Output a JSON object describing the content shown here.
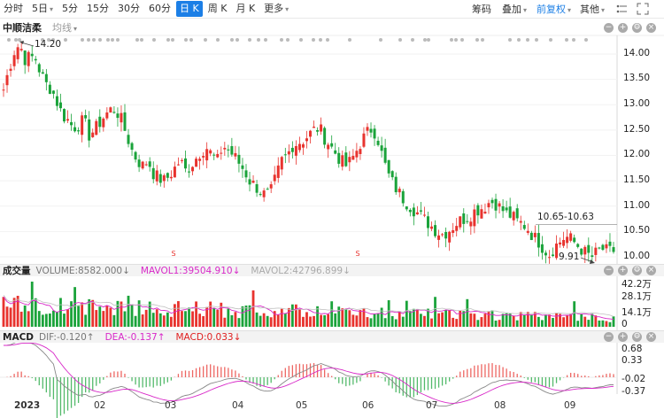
{
  "toolbar": {
    "periods": [
      "分时",
      "5日",
      "5分",
      "15分",
      "30分",
      "60分",
      "日 K",
      "周 K",
      "月 K",
      "更多"
    ],
    "active_period": "日 K",
    "chip": "筹码",
    "overlay": "叠加",
    "adjust": "前复权",
    "other": "其他"
  },
  "stock": {
    "name": "中顺洁柔",
    "ma_label": "均线"
  },
  "price_axis": [
    "14.00",
    "13.50",
    "13.00",
    "12.50",
    "12.00",
    "11.50",
    "11.00",
    "10.50",
    "10.00"
  ],
  "annotations": {
    "high": "14.20",
    "low": "9.91",
    "range": "10.65-10.63"
  },
  "volume_pane": {
    "title": "成交量",
    "volume": "VOLUME:8582.000↓",
    "mavol1": "MAVOL1:39504.910↓",
    "mavol2": "MAVOL2:42796.899↓",
    "axis": [
      "42.2万",
      "28.1万",
      "14.1万",
      "0"
    ]
  },
  "macd_pane": {
    "title": "MACD",
    "dif": "DIF:-0.120↑",
    "dea": "DEA:-0.137↑",
    "macd": "MACD:0.033↓",
    "axis": [
      "0.68",
      "0.33",
      "-0.02",
      "-0.37"
    ]
  },
  "time_axis": [
    "2023",
    "02",
    "03",
    "04",
    "05",
    "06",
    "07",
    "08",
    "09"
  ],
  "colors": {
    "up": "#e8332e",
    "down": "#1aa33a",
    "mavol1": "#d828c8",
    "dif": "#888888",
    "dea": "#d828c8",
    "accent": "#1c7fe6"
  },
  "chart_data": {
    "type": "candlestick",
    "ylim": [
      9.85,
      14.3
    ],
    "path": [
      13.3,
      13.7,
      14.05,
      14.2,
      13.9,
      13.95,
      13.9,
      13.6,
      13.4,
      13.3,
      13.05,
      12.8,
      12.7,
      12.55,
      12.6,
      12.7,
      12.4,
      12.5,
      12.65,
      12.8,
      12.9,
      12.9,
      12.7,
      12.4,
      12.1,
      11.9,
      11.8,
      11.9,
      11.65,
      11.55,
      11.5,
      11.6,
      11.75,
      11.9,
      11.7,
      11.8,
      11.95,
      12.1,
      12.15,
      12.0,
      11.9,
      12.2,
      12.1,
      12.0,
      11.85,
      11.7,
      11.5,
      11.4,
      11.3,
      11.2,
      11.3,
      11.6,
      11.9,
      12.0,
      12.2,
      12.25,
      12.3,
      12.4,
      12.5,
      12.55,
      12.35,
      12.2,
      12.05,
      11.9,
      11.8,
      11.9,
      12.1,
      12.3,
      12.45,
      12.55,
      12.3,
      11.9,
      11.6,
      11.4,
      11.25,
      11.1,
      11.0,
      10.9,
      10.8,
      10.7,
      10.6,
      10.5,
      10.45,
      10.5,
      10.6,
      10.7,
      10.75,
      10.8,
      10.9,
      10.95,
      11.0,
      11.1,
      11.05,
      10.95,
      10.85,
      10.8,
      10.7,
      10.65,
      10.55,
      10.4,
      10.3,
      10.15,
      10.05,
      10.2,
      10.3,
      10.4,
      10.35,
      10.25,
      10.15,
      10.05,
      10.0,
      10.1,
      10.15,
      10.1,
      10.12
    ],
    "months": [
      "2023-01",
      "2023-02",
      "2023-03",
      "2023-04",
      "2023-05",
      "2023-06",
      "2023-07",
      "2023-08",
      "2023-09"
    ]
  }
}
